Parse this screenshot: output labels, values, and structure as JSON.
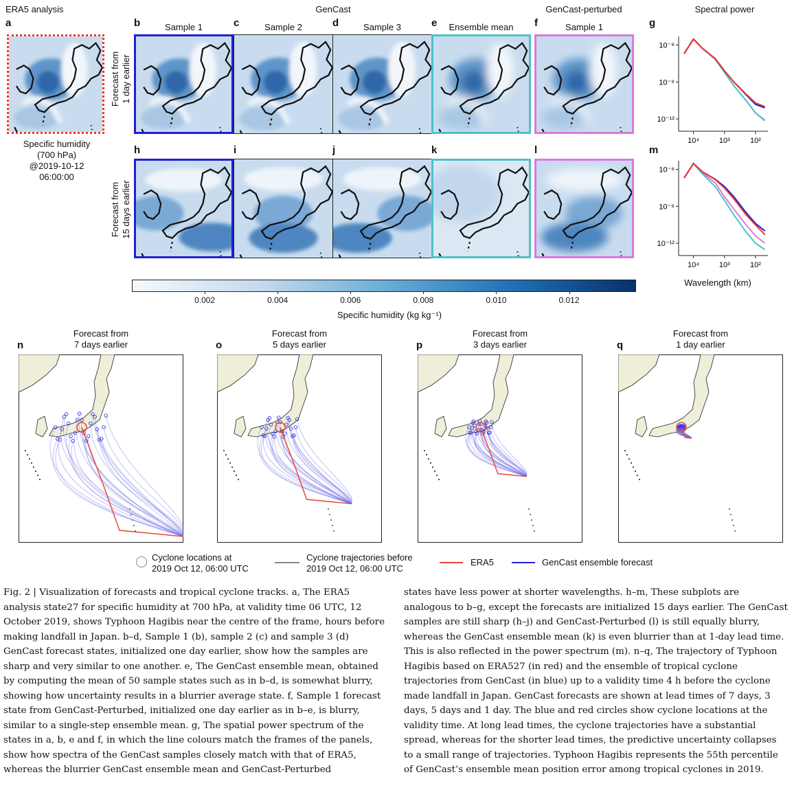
{
  "headers": {
    "era5": "ERA5 analysis",
    "gencast": "GenCast",
    "perturbed": "GenCast-perturbed",
    "spectral": "Spectral power"
  },
  "panel_labels": [
    "a",
    "b",
    "c",
    "d",
    "e",
    "f",
    "g",
    "h",
    "i",
    "j",
    "k",
    "l",
    "m",
    "n",
    "o",
    "p",
    "q"
  ],
  "column_titles": {
    "b": "Sample 1",
    "c": "Sample 2",
    "d": "Sample 3",
    "e": "Ensemble mean",
    "f": "Sample 1"
  },
  "row_labels": {
    "top": [
      "Forecast from",
      "1 day earlier"
    ],
    "bottom": [
      "Forecast from",
      "15 days earlier"
    ]
  },
  "era5_caption": [
    "Specific humidity",
    "(700 hPa)",
    "@2019-10-12",
    "06:00:00"
  ],
  "colorbar": {
    "ticks": [
      "0.002",
      "0.004",
      "0.006",
      "0.008",
      "0.010",
      "0.012"
    ],
    "label": "Specific humidity (kg kg⁻¹)",
    "range": [
      0,
      0.0138
    ],
    "colors": {
      "low": "#f4f8fc",
      "high": "#08306b"
    }
  },
  "spectrum": {
    "ytick_labels": [
      "10⁻⁶",
      "10⁻⁹",
      "10⁻¹²"
    ],
    "xtick_labels": [
      "10⁴",
      "10³",
      "10²"
    ],
    "xlabel": "Wavelength (km)"
  },
  "chart_data": [
    {
      "type": "line",
      "panel": "g",
      "xlabel": "",
      "x_scale": "log",
      "y_scale": "log",
      "xlim": [
        30000,
        40
      ],
      "ylim": [
        1e-13,
        5e-06
      ],
      "wavelength_km": [
        20000,
        10000,
        5000,
        2000,
        1000,
        500,
        200,
        100,
        50
      ],
      "series": [
        {
          "color": "#e83a2a",
          "values": [
            2e-07,
            3e-06,
            5e-07,
            8e-08,
            8e-09,
            1e-09,
            1e-10,
            2e-11,
            1e-11
          ]
        },
        {
          "color": "#1f1fd6",
          "values": [
            2e-07,
            3e-06,
            5e-07,
            8e-08,
            8e-09,
            1e-09,
            9e-11,
            1.5e-11,
            8e-12
          ]
        },
        {
          "color": "#4fc0c8",
          "values": [
            2e-07,
            3e-06,
            5e-07,
            7e-08,
            6e-09,
            5e-10,
            3e-11,
            3e-12,
            8e-13
          ]
        },
        {
          "color": "#d67ae0",
          "values": [
            2e-07,
            3e-06,
            5e-07,
            7e-08,
            6e-09,
            5e-10,
            3e-11,
            3e-12,
            7e-13
          ]
        }
      ]
    },
    {
      "type": "line",
      "panel": "m",
      "xlabel": "Wavelength (km)",
      "x_scale": "log",
      "y_scale": "log",
      "xlim": [
        30000,
        40
      ],
      "ylim": [
        1e-13,
        5e-06
      ],
      "wavelength_km": [
        20000,
        10000,
        5000,
        2000,
        1000,
        500,
        200,
        100,
        50
      ],
      "series": [
        {
          "color": "#e83a2a",
          "values": [
            2e-07,
            3e-06,
            6e-07,
            1.5e-07,
            3e-08,
            4e-09,
            2e-10,
            3e-11,
            5e-12
          ]
        },
        {
          "color": "#1f1fd6",
          "values": [
            2e-07,
            3e-06,
            6e-07,
            1.6e-07,
            4e-08,
            6e-09,
            3e-10,
            4e-11,
            1e-11
          ]
        },
        {
          "color": "#4fc0c8",
          "values": [
            2e-07,
            3e-06,
            4e-07,
            4e-08,
            3e-09,
            2e-10,
            8e-12,
            1e-12,
            3e-13
          ]
        },
        {
          "color": "#d67ae0",
          "values": [
            2e-07,
            3e-06,
            5e-07,
            8e-08,
            6e-09,
            6e-10,
            3e-11,
            4e-12,
            1e-12
          ]
        }
      ]
    }
  ],
  "track_panels": [
    {
      "label": "n",
      "title": [
        "Forecast from",
        "7 days earlier"
      ]
    },
    {
      "label": "o",
      "title": [
        "Forecast from",
        "5 days earlier"
      ]
    },
    {
      "label": "p",
      "title": [
        "Forecast from",
        "3 days earlier"
      ]
    },
    {
      "label": "q",
      "title": [
        "Forecast from",
        "1 day earlier"
      ]
    }
  ],
  "legend": {
    "locations": [
      "Cyclone locations at",
      "2019 Oct 12, 06:00 UTC"
    ],
    "trajectories": [
      "Cyclone trajectories before",
      "2019 Oct 12, 06:00 UTC"
    ],
    "era5": "ERA5",
    "ensemble": "GenCast ensemble forecast"
  },
  "caption": {
    "left": [
      {
        "bold": "Fig. 2 | Visualization of forecasts and tropical cyclone tracks. a",
        "text": ", The ERA5 analysis state"
      },
      {
        "text": "27 for specific humidity at 700 hPa, at validity time 06 UTC, 12 October 2019, shows Typhoon Hagibis near the centre of the frame, hours before making landfall in Japan."
      }
    ],
    "left_text": "Fig. 2 | Visualization of forecasts and tropical cyclone tracks. a, The ERA5 analysis state27 for specific humidity at 700 hPa, at validity time 06 UTC, 12 October 2019, shows Typhoon Hagibis near the centre of the frame, hours before making landfall in Japan. b–d, Sample 1 (b), sample 2 (c) and sample 3 (d) GenCast forecast states, initialized one day earlier, show how the samples are sharp and very similar to one another. e, The GenCast ensemble mean, obtained by computing the mean of 50 sample states such as in b–d, is somewhat blurry, showing how uncertainty results in a blurrier average state. f, Sample 1 forecast state from GenCast-Perturbed, initialized one day earlier as in b–e, is blurry, similar to a single-step ensemble mean. g, The spatial power spectrum of the states in a, b, e and f, in which the line colours match the frames of the panels, show how spectra of the GenCast samples closely match with that of ERA5, whereas the blurrier GenCast ensemble mean and GenCast-Perturbed",
    "right_text": "states have less power at shorter wavelengths. h–m, These subplots are analogous to b–g, except the forecasts are initialized 15 days earlier. The GenCast samples are still sharp (h–j) and GenCast-Perturbed (l) is still equally blurry, whereas the GenCast ensemble mean (k) is even blurrier than at 1-day lead time. This is also reflected in the power spectrum (m). n–q, The trajectory of Typhoon Hagibis based on ERA527 (in red) and the ensemble of tropical cyclone trajectories from GenCast (in blue) up to a validity time 4 h before the cyclone made landfall in Japan. GenCast forecasts are shown at lead times of 7 days, 3 days, 5 days and 1 day. The blue and red circles show cyclone locations at the validity time. At long lead times, the cyclone trajectories have a substantial spread, whereas for the shorter lead times, the predictive uncertainty collapses to a small range of trajectories. Typhoon Hagibis represents the 55th percentile of GenCast’s ensemble mean position error among tropical cyclones in 2019."
  },
  "colors": {
    "era5_frame": "#e83a2a",
    "gencast_sample_frame": "#1f1fd6",
    "ensemble_mean_frame": "#4fc0c8",
    "perturbed_frame": "#d67ae0",
    "land": "#efefd9",
    "track_red": "#e8473a",
    "track_blue": "#3a3ae0"
  }
}
